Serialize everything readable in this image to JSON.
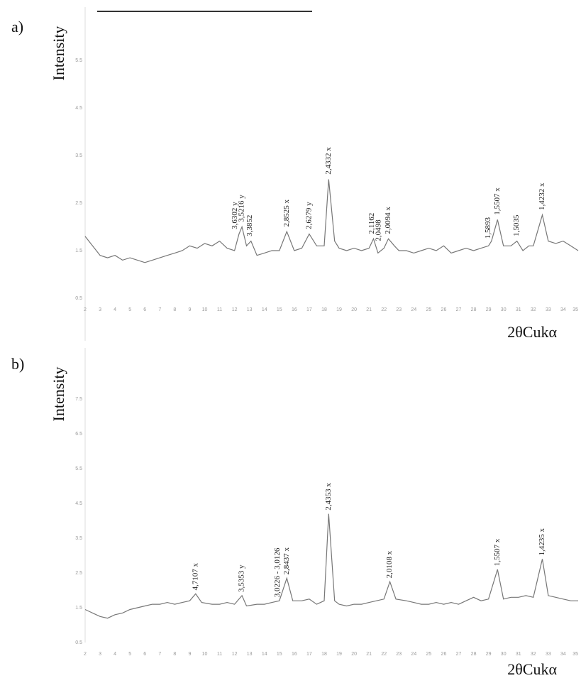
{
  "chart_data": [
    {
      "type": "line",
      "label": "a)",
      "y_label": "Intensity",
      "x_label": "2θCukα",
      "color": "#777777",
      "xlim": [
        2,
        35
      ],
      "ylim": [
        0.5,
        6.0
      ],
      "xticks": [
        2,
        3,
        4,
        5,
        6,
        7,
        8,
        9,
        10,
        11,
        12,
        13,
        14,
        15,
        16,
        17,
        18,
        19,
        20,
        21,
        22,
        23,
        24,
        25,
        26,
        27,
        28,
        29,
        30,
        31,
        32,
        33,
        34,
        35
      ],
      "yticks": [
        0.5,
        1.5,
        2.5,
        3.5,
        4.5,
        5.5
      ],
      "x": [
        2,
        2.5,
        3,
        3.5,
        4,
        4.5,
        5,
        5.5,
        6,
        6.5,
        7,
        7.5,
        8,
        8.5,
        9,
        9.5,
        10,
        10.5,
        11,
        11.5,
        12,
        12.3,
        12.5,
        12.8,
        13.1,
        13.5,
        14,
        14.5,
        15,
        15.5,
        16,
        16.5,
        17,
        17.5,
        18,
        18.3,
        18.7,
        19,
        19.5,
        20,
        20.5,
        21,
        21.3,
        21.6,
        22,
        22.3,
        22.7,
        23,
        23.5,
        24,
        24.5,
        25,
        25.5,
        26,
        26.5,
        27,
        27.5,
        28,
        28.5,
        29,
        29.2,
        29.6,
        30,
        30.5,
        30.9,
        31.3,
        31.7,
        32,
        32.6,
        33,
        33.5,
        34,
        34.5,
        35
      ],
      "values": [
        1.8,
        1.6,
        1.4,
        1.35,
        1.4,
        1.3,
        1.35,
        1.3,
        1.25,
        1.3,
        1.35,
        1.4,
        1.45,
        1.5,
        1.6,
        1.55,
        1.65,
        1.6,
        1.7,
        1.55,
        1.5,
        1.85,
        2.0,
        1.6,
        1.7,
        1.4,
        1.45,
        1.5,
        1.5,
        1.9,
        1.5,
        1.55,
        1.85,
        1.6,
        1.6,
        3.0,
        1.7,
        1.55,
        1.5,
        1.55,
        1.5,
        1.55,
        1.75,
        1.45,
        1.55,
        1.75,
        1.6,
        1.5,
        1.5,
        1.45,
        1.5,
        1.55,
        1.5,
        1.6,
        1.45,
        1.5,
        1.55,
        1.5,
        1.55,
        1.6,
        1.7,
        2.15,
        1.6,
        1.6,
        1.7,
        1.5,
        1.6,
        1.6,
        2.25,
        1.7,
        1.65,
        1.7,
        1.6,
        1.5
      ],
      "annotations": [
        {
          "text": "3,6302 y",
          "x": 12.05,
          "y": 1.95
        },
        {
          "text": "3,5216 y",
          "x": 12.5,
          "y": 2.1
        },
        {
          "text": "3,3852",
          "x": 13.05,
          "y": 1.8
        },
        {
          "text": "2,8525 x",
          "x": 15.5,
          "y": 2.0
        },
        {
          "text": "2,6279 y",
          "x": 17.0,
          "y": 1.95
        },
        {
          "text": "2,4332 x",
          "x": 18.3,
          "y": 3.1
        },
        {
          "text": "2,1162",
          "x": 21.2,
          "y": 1.85
        },
        {
          "text": "2,0498",
          "x": 21.65,
          "y": 1.7
        },
        {
          "text": "2,0094 x",
          "x": 22.3,
          "y": 1.85
        },
        {
          "text": "1,5893",
          "x": 29.0,
          "y": 1.75
        },
        {
          "text": "1,5507 x",
          "x": 29.6,
          "y": 2.25
        },
        {
          "text": "1,5035",
          "x": 30.9,
          "y": 1.8
        },
        {
          "text": "1,4232 x",
          "x": 32.6,
          "y": 2.35
        }
      ]
    },
    {
      "type": "line",
      "label": "b)",
      "y_label": "Intensity",
      "x_label": "2θCukα",
      "color": "#777777",
      "xlim": [
        2,
        35
      ],
      "ylim": [
        0.5,
        8.0
      ],
      "xticks": [
        2,
        3,
        4,
        5,
        6,
        7,
        8,
        9,
        10,
        11,
        12,
        13,
        14,
        15,
        16,
        17,
        18,
        19,
        20,
        21,
        22,
        23,
        24,
        25,
        26,
        27,
        28,
        29,
        30,
        31,
        32,
        33,
        34,
        35
      ],
      "yticks": [
        0.5,
        1.5,
        2.5,
        3.5,
        4.5,
        5.5,
        6.5,
        7.5
      ],
      "x": [
        2,
        2.5,
        3,
        3.5,
        4,
        4.5,
        5,
        5.5,
        6,
        6.5,
        7,
        7.5,
        8,
        8.5,
        9,
        9.4,
        9.8,
        10.5,
        11,
        11.5,
        12,
        12.5,
        12.8,
        13.5,
        14,
        14.5,
        15,
        15.5,
        15.9,
        16.5,
        17,
        17.5,
        18,
        18.3,
        18.7,
        19,
        19.5,
        20,
        20.5,
        21,
        21.5,
        22,
        22.4,
        22.8,
        23.5,
        24,
        24.5,
        25,
        25.5,
        26,
        26.5,
        27,
        27.5,
        28,
        28.5,
        29,
        29.6,
        30,
        30.5,
        31,
        31.5,
        32,
        32.6,
        33,
        33.5,
        34,
        34.5,
        35
      ],
      "values": [
        1.45,
        1.35,
        1.25,
        1.2,
        1.3,
        1.35,
        1.45,
        1.5,
        1.55,
        1.6,
        1.6,
        1.65,
        1.6,
        1.65,
        1.7,
        1.9,
        1.65,
        1.6,
        1.6,
        1.65,
        1.6,
        1.85,
        1.55,
        1.6,
        1.6,
        1.65,
        1.7,
        2.35,
        1.7,
        1.7,
        1.75,
        1.6,
        1.7,
        4.2,
        1.7,
        1.6,
        1.55,
        1.6,
        1.6,
        1.65,
        1.7,
        1.75,
        2.25,
        1.75,
        1.7,
        1.65,
        1.6,
        1.6,
        1.65,
        1.6,
        1.65,
        1.6,
        1.7,
        1.8,
        1.7,
        1.75,
        2.6,
        1.75,
        1.8,
        1.8,
        1.85,
        1.8,
        2.9,
        1.85,
        1.8,
        1.75,
        1.7,
        1.7
      ],
      "annotations": [
        {
          "text": "4,7107 x",
          "x": 9.4,
          "y": 2.0
        },
        {
          "text": "3,5353 y",
          "x": 12.5,
          "y": 1.95
        },
        {
          "text": "3,0226 - 3,0126",
          "x": 14.9,
          "y": 1.8
        },
        {
          "text": "2,8437 x",
          "x": 15.5,
          "y": 2.45
        },
        {
          "text": "2,4353 x",
          "x": 18.3,
          "y": 4.3
        },
        {
          "text": "2,0108 x",
          "x": 22.4,
          "y": 2.35
        },
        {
          "text": "1,5507 x",
          "x": 29.6,
          "y": 2.7
        },
        {
          "text": "1,4235 x",
          "x": 32.6,
          "y": 3.0
        }
      ]
    }
  ]
}
